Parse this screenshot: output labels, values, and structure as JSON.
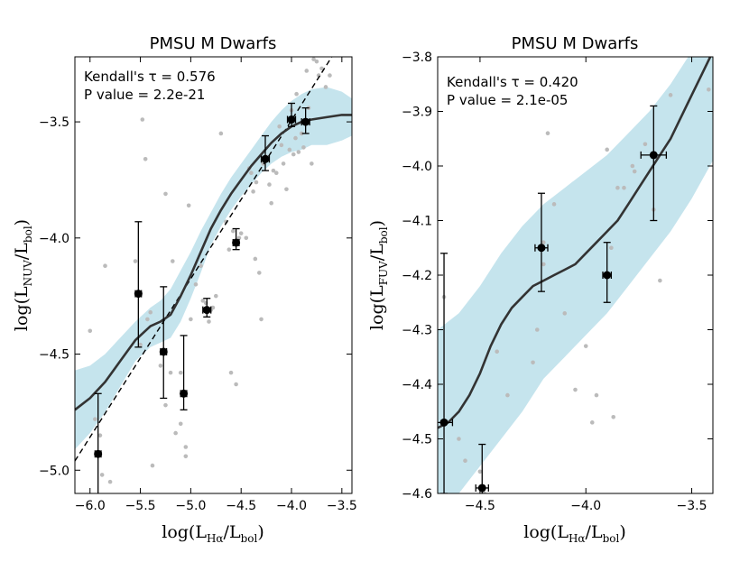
{
  "chart_data": [
    {
      "type": "scatter",
      "title": "PMSU M Dwarfs",
      "xlabel": {
        "pre": "log(L",
        "sub1": "Hα",
        "mid": "/L",
        "sub2": "bol",
        "post": ")"
      },
      "ylabel": {
        "pre": "log(L",
        "sub1": "NUV",
        "mid": "/L",
        "sub2": "bol",
        "post": ")"
      },
      "xlim": [
        -6.15,
        -3.4
      ],
      "ylim": [
        -5.1,
        -3.22
      ],
      "xticks": [
        -6.0,
        -5.5,
        -5.0,
        -4.5,
        -4.0,
        -3.5
      ],
      "xtick_labels": [
        "−6.0",
        "−5.5",
        "−5.0",
        "−4.5",
        "−4.0",
        "−3.5"
      ],
      "yticks": [
        -5.0,
        -4.5,
        -4.0,
        -3.5
      ],
      "ytick_labels": [
        "−5.0",
        "−4.5",
        "−4.0",
        "−3.5"
      ],
      "annotation": {
        "stat": "Kendall's τ = 0.576",
        "pvalue": "P value = 2.2e-21"
      },
      "scatter_points": [
        [
          -6.0,
          -4.4
        ],
        [
          -5.95,
          -4.78
        ],
        [
          -5.9,
          -4.85
        ],
        [
          -5.88,
          -5.02
        ],
        [
          -5.85,
          -4.12
        ],
        [
          -5.8,
          -5.05
        ],
        [
          -5.55,
          -4.1
        ],
        [
          -5.5,
          -4.46
        ],
        [
          -5.48,
          -3.49
        ],
        [
          -5.45,
          -3.66
        ],
        [
          -5.43,
          -4.35
        ],
        [
          -5.4,
          -4.32
        ],
        [
          -5.38,
          -4.98
        ],
        [
          -5.3,
          -4.55
        ],
        [
          -5.25,
          -4.72
        ],
        [
          -5.25,
          -3.81
        ],
        [
          -5.2,
          -4.58
        ],
        [
          -5.18,
          -4.1
        ],
        [
          -5.15,
          -4.84
        ],
        [
          -5.1,
          -4.58
        ],
        [
          -5.1,
          -4.8
        ],
        [
          -5.05,
          -4.9
        ],
        [
          -5.05,
          -4.94
        ],
        [
          -5.02,
          -3.86
        ],
        [
          -5.0,
          -4.35
        ],
        [
          -4.95,
          -4.2
        ],
        [
          -4.9,
          -4.12
        ],
        [
          -4.88,
          -4.27
        ],
        [
          -4.85,
          -4.28
        ],
        [
          -4.82,
          -4.36
        ],
        [
          -4.8,
          -4.31
        ],
        [
          -4.78,
          -4.3
        ],
        [
          -4.75,
          -4.25
        ],
        [
          -4.7,
          -3.55
        ],
        [
          -4.65,
          -3.93
        ],
        [
          -4.62,
          -4.05
        ],
        [
          -4.6,
          -4.58
        ],
        [
          -4.58,
          -3.97
        ],
        [
          -4.55,
          -4.63
        ],
        [
          -4.52,
          -4.0
        ],
        [
          -4.5,
          -3.98
        ],
        [
          -4.45,
          -4.0
        ],
        [
          -4.42,
          -3.7
        ],
        [
          -4.4,
          -3.72
        ],
        [
          -4.38,
          -3.8
        ],
        [
          -4.36,
          -4.09
        ],
        [
          -4.35,
          -3.76
        ],
        [
          -4.32,
          -4.15
        ],
        [
          -4.3,
          -4.35
        ],
        [
          -4.28,
          -3.68
        ],
        [
          -4.25,
          -3.65
        ],
        [
          -4.22,
          -3.77
        ],
        [
          -4.2,
          -3.85
        ],
        [
          -4.18,
          -3.71
        ],
        [
          -4.15,
          -3.72
        ],
        [
          -4.12,
          -3.52
        ],
        [
          -4.1,
          -3.6
        ],
        [
          -4.08,
          -3.68
        ],
        [
          -4.05,
          -3.79
        ],
        [
          -4.02,
          -3.62
        ],
        [
          -4.0,
          -3.45
        ],
        [
          -3.98,
          -3.64
        ],
        [
          -3.96,
          -3.57
        ],
        [
          -3.95,
          -3.38
        ],
        [
          -3.93,
          -3.63
        ],
        [
          -3.9,
          -3.55
        ],
        [
          -3.88,
          -3.61
        ],
        [
          -3.85,
          -3.28
        ],
        [
          -3.83,
          -3.44
        ],
        [
          -3.8,
          -3.68
        ],
        [
          -3.78,
          -3.23
        ],
        [
          -3.75,
          -3.24
        ],
        [
          -3.73,
          -3.3
        ],
        [
          -3.7,
          -3.27
        ],
        [
          -3.66,
          -3.35
        ],
        [
          -3.62,
          -3.3
        ]
      ],
      "binned_points": [
        {
          "x": -5.92,
          "y": -4.93,
          "xerr": 0.03,
          "yerr_low": 0.2,
          "yerr_high": 0.26
        },
        {
          "x": -5.52,
          "y": -4.24,
          "xerr": 0.03,
          "yerr_low": 0.23,
          "yerr_high": 0.31
        },
        {
          "x": -5.27,
          "y": -4.49,
          "xerr": 0.03,
          "yerr_low": 0.2,
          "yerr_high": 0.28
        },
        {
          "x": -5.07,
          "y": -4.67,
          "xerr": 0.03,
          "yerr_low": 0.07,
          "yerr_high": 0.25
        },
        {
          "x": -4.84,
          "y": -4.31,
          "xerr": 0.04,
          "yerr_low": 0.03,
          "yerr_high": 0.05
        },
        {
          "x": -4.55,
          "y": -4.02,
          "xerr": 0.03,
          "yerr_low": 0.03,
          "yerr_high": 0.06
        },
        {
          "x": -4.26,
          "y": -3.66,
          "xerr": 0.04,
          "yerr_low": 0.05,
          "yerr_high": 0.1
        },
        {
          "x": -4.0,
          "y": -3.49,
          "xerr": 0.04,
          "yerr_low": 0.03,
          "yerr_high": 0.07
        },
        {
          "x": -3.86,
          "y": -3.5,
          "xerr": 0.04,
          "yerr_low": 0.05,
          "yerr_high": 0.06
        }
      ],
      "fit_curve": [
        [
          -6.15,
          -4.74
        ],
        [
          -6.0,
          -4.69
        ],
        [
          -5.85,
          -4.62
        ],
        [
          -5.7,
          -4.53
        ],
        [
          -5.55,
          -4.44
        ],
        [
          -5.4,
          -4.38
        ],
        [
          -5.3,
          -4.36
        ],
        [
          -5.2,
          -4.33
        ],
        [
          -5.1,
          -4.25
        ],
        [
          -5.0,
          -4.16
        ],
        [
          -4.9,
          -4.06
        ],
        [
          -4.8,
          -3.96
        ],
        [
          -4.7,
          -3.88
        ],
        [
          -4.6,
          -3.81
        ],
        [
          -4.5,
          -3.75
        ],
        [
          -4.4,
          -3.69
        ],
        [
          -4.3,
          -3.64
        ],
        [
          -4.2,
          -3.59
        ],
        [
          -4.1,
          -3.55
        ],
        [
          -4.0,
          -3.52
        ],
        [
          -3.9,
          -3.5
        ],
        [
          -3.8,
          -3.49
        ],
        [
          -3.65,
          -3.48
        ],
        [
          -3.5,
          -3.47
        ],
        [
          -3.4,
          -3.47
        ]
      ],
      "band_upper": [
        [
          -6.15,
          -4.57
        ],
        [
          -6.0,
          -4.55
        ],
        [
          -5.85,
          -4.5
        ],
        [
          -5.7,
          -4.43
        ],
        [
          -5.55,
          -4.36
        ],
        [
          -5.4,
          -4.3
        ],
        [
          -5.3,
          -4.27
        ],
        [
          -5.2,
          -4.22
        ],
        [
          -5.1,
          -4.14
        ],
        [
          -5.0,
          -4.06
        ],
        [
          -4.9,
          -3.97
        ],
        [
          -4.8,
          -3.89
        ],
        [
          -4.7,
          -3.81
        ],
        [
          -4.6,
          -3.74
        ],
        [
          -4.5,
          -3.68
        ],
        [
          -4.4,
          -3.62
        ],
        [
          -4.3,
          -3.56
        ],
        [
          -4.2,
          -3.5
        ],
        [
          -4.1,
          -3.45
        ],
        [
          -4.0,
          -3.41
        ],
        [
          -3.9,
          -3.38
        ],
        [
          -3.8,
          -3.36
        ],
        [
          -3.65,
          -3.35
        ],
        [
          -3.5,
          -3.37
        ],
        [
          -3.4,
          -3.4
        ]
      ],
      "band_lower": [
        [
          -6.15,
          -4.91
        ],
        [
          -6.0,
          -4.84
        ],
        [
          -5.85,
          -4.75
        ],
        [
          -5.7,
          -4.64
        ],
        [
          -5.55,
          -4.53
        ],
        [
          -5.4,
          -4.47
        ],
        [
          -5.3,
          -4.45
        ],
        [
          -5.2,
          -4.43
        ],
        [
          -5.1,
          -4.36
        ],
        [
          -5.0,
          -4.26
        ],
        [
          -4.9,
          -4.15
        ],
        [
          -4.8,
          -4.03
        ],
        [
          -4.7,
          -3.95
        ],
        [
          -4.6,
          -3.88
        ],
        [
          -4.5,
          -3.82
        ],
        [
          -4.4,
          -3.77
        ],
        [
          -4.3,
          -3.72
        ],
        [
          -4.2,
          -3.68
        ],
        [
          -4.1,
          -3.65
        ],
        [
          -4.0,
          -3.63
        ],
        [
          -3.9,
          -3.62
        ],
        [
          -3.8,
          -3.6
        ],
        [
          -3.65,
          -3.6
        ],
        [
          -3.5,
          -3.58
        ],
        [
          -3.4,
          -3.56
        ]
      ],
      "reference_line": [
        [
          -6.15,
          -4.96
        ],
        [
          -3.6,
          -3.22
        ]
      ],
      "colors": {
        "scatter": "#bbbbbb",
        "band": "#add8e6",
        "fit": "#333333",
        "binned": "#000000",
        "reference": "#000000"
      }
    },
    {
      "type": "scatter",
      "title": "PMSU M Dwarfs",
      "xlabel": {
        "pre": "log(L",
        "sub1": "Hα",
        "mid": "/L",
        "sub2": "bol",
        "post": ")"
      },
      "ylabel": {
        "pre": "log(L",
        "sub1": "FUV",
        "mid": "/L",
        "sub2": "bol",
        "post": ")"
      },
      "xlim": [
        -4.7,
        -3.4
      ],
      "ylim": [
        -4.6,
        -3.8
      ],
      "xticks": [
        -4.5,
        -4.0,
        -3.5
      ],
      "xtick_labels": [
        "−4.5",
        "−4.0",
        "−3.5"
      ],
      "yticks": [
        -4.6,
        -4.5,
        -4.4,
        -4.3,
        -4.2,
        -4.1,
        -4.0,
        -3.9,
        -3.8
      ],
      "ytick_labels": [
        "−4.6",
        "−4.5",
        "−4.4",
        "−4.3",
        "−4.2",
        "−4.1",
        "−4.0",
        "−3.9",
        "−3.8"
      ],
      "annotation": {
        "stat": "Kendall's τ = 0.420",
        "pvalue": "P value = 2.1e-05"
      },
      "scatter_points": [
        [
          -4.67,
          -4.24
        ],
        [
          -4.6,
          -4.5
        ],
        [
          -4.57,
          -4.54
        ],
        [
          -4.5,
          -4.56
        ],
        [
          -4.48,
          -4.6
        ],
        [
          -4.42,
          -4.34
        ],
        [
          -4.37,
          -4.42
        ],
        [
          -4.25,
          -4.36
        ],
        [
          -4.23,
          -4.3
        ],
        [
          -4.2,
          -4.14
        ],
        [
          -4.2,
          -4.18
        ],
        [
          -4.18,
          -3.94
        ],
        [
          -4.15,
          -4.07
        ],
        [
          -4.1,
          -4.27
        ],
        [
          -4.05,
          -4.41
        ],
        [
          -4.0,
          -4.33
        ],
        [
          -3.97,
          -4.47
        ],
        [
          -3.95,
          -4.42
        ],
        [
          -3.9,
          -3.97
        ],
        [
          -3.88,
          -4.15
        ],
        [
          -3.87,
          -4.46
        ],
        [
          -3.85,
          -4.04
        ],
        [
          -3.82,
          -4.04
        ],
        [
          -3.78,
          -4.0
        ],
        [
          -3.77,
          -4.01
        ],
        [
          -3.72,
          -3.96
        ],
        [
          -3.68,
          -4.08
        ],
        [
          -3.65,
          -4.21
        ],
        [
          -3.6,
          -3.87
        ],
        [
          -3.42,
          -3.86
        ]
      ],
      "binned_points": [
        {
          "x": -4.67,
          "y": -4.47,
          "xerr": 0.04,
          "yerr_low": 0.13,
          "yerr_high": 0.31
        },
        {
          "x": -4.49,
          "y": -4.59,
          "xerr": 0.03,
          "yerr_low": 0.02,
          "yerr_high": 0.08
        },
        {
          "x": -4.21,
          "y": -4.15,
          "xerr": 0.03,
          "yerr_low": 0.08,
          "yerr_high": 0.1
        },
        {
          "x": -3.9,
          "y": -4.2,
          "xerr": 0.02,
          "yerr_low": 0.05,
          "yerr_high": 0.06
        },
        {
          "x": -3.68,
          "y": -3.98,
          "xerr": 0.06,
          "yerr_low": 0.12,
          "yerr_high": 0.09
        }
      ],
      "fit_curve": [
        [
          -4.7,
          -4.48
        ],
        [
          -4.65,
          -4.47
        ],
        [
          -4.6,
          -4.45
        ],
        [
          -4.55,
          -4.42
        ],
        [
          -4.5,
          -4.38
        ],
        [
          -4.45,
          -4.33
        ],
        [
          -4.4,
          -4.29
        ],
        [
          -4.35,
          -4.26
        ],
        [
          -4.3,
          -4.24
        ],
        [
          -4.25,
          -4.22
        ],
        [
          -4.2,
          -4.21
        ],
        [
          -4.15,
          -4.2
        ],
        [
          -4.1,
          -4.19
        ],
        [
          -4.05,
          -4.18
        ],
        [
          -4.0,
          -4.16
        ],
        [
          -3.95,
          -4.14
        ],
        [
          -3.9,
          -4.12
        ],
        [
          -3.85,
          -4.1
        ],
        [
          -3.8,
          -4.07
        ],
        [
          -3.75,
          -4.04
        ],
        [
          -3.7,
          -4.01
        ],
        [
          -3.65,
          -3.98
        ],
        [
          -3.6,
          -3.95
        ],
        [
          -3.55,
          -3.91
        ],
        [
          -3.5,
          -3.87
        ],
        [
          -3.45,
          -3.83
        ],
        [
          -3.4,
          -3.79
        ]
      ],
      "band_upper": [
        [
          -4.7,
          -4.3
        ],
        [
          -4.6,
          -4.27
        ],
        [
          -4.5,
          -4.22
        ],
        [
          -4.4,
          -4.16
        ],
        [
          -4.3,
          -4.11
        ],
        [
          -4.2,
          -4.07
        ],
        [
          -4.1,
          -4.04
        ],
        [
          -4.0,
          -4.01
        ],
        [
          -3.9,
          -3.98
        ],
        [
          -3.8,
          -3.94
        ],
        [
          -3.7,
          -3.9
        ],
        [
          -3.6,
          -3.85
        ],
        [
          -3.5,
          -3.79
        ],
        [
          -3.4,
          -3.72
        ]
      ],
      "band_lower": [
        [
          -4.7,
          -4.64
        ],
        [
          -4.6,
          -4.6
        ],
        [
          -4.5,
          -4.55
        ],
        [
          -4.4,
          -4.5
        ],
        [
          -4.3,
          -4.45
        ],
        [
          -4.2,
          -4.39
        ],
        [
          -4.1,
          -4.35
        ],
        [
          -4.0,
          -4.31
        ],
        [
          -3.9,
          -4.27
        ],
        [
          -3.8,
          -4.22
        ],
        [
          -3.7,
          -4.17
        ],
        [
          -3.6,
          -4.12
        ],
        [
          -3.5,
          -4.06
        ],
        [
          -3.4,
          -3.99
        ]
      ],
      "colors": {
        "scatter": "#bbbbbb",
        "band": "#add8e6",
        "fit": "#333333",
        "binned": "#000000"
      }
    }
  ]
}
